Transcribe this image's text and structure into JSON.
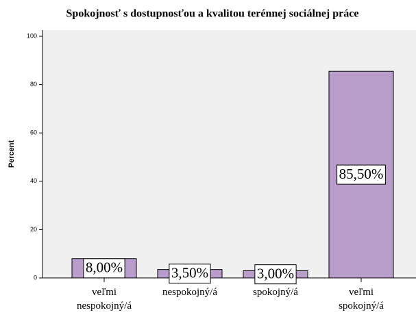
{
  "chart_data": {
    "type": "bar",
    "title": "Spokojnosť s dostupnosťou a kvalitou terénnej sociálnej práce",
    "y_label": "Percent",
    "categories": [
      "veľmi nespokojný/á",
      "nespokojný/á",
      "spokojný/á",
      "veľmi spokojný/á"
    ],
    "values": [
      8,
      3.5,
      3,
      85.5
    ],
    "value_labels": [
      "8,00%",
      "3,50%",
      "3,00%",
      "85,50%"
    ],
    "color": "#b89cca",
    "ylim": [
      0,
      100
    ],
    "yticks": [
      0,
      20,
      40,
      60,
      80,
      100
    ],
    "grid": false
  }
}
